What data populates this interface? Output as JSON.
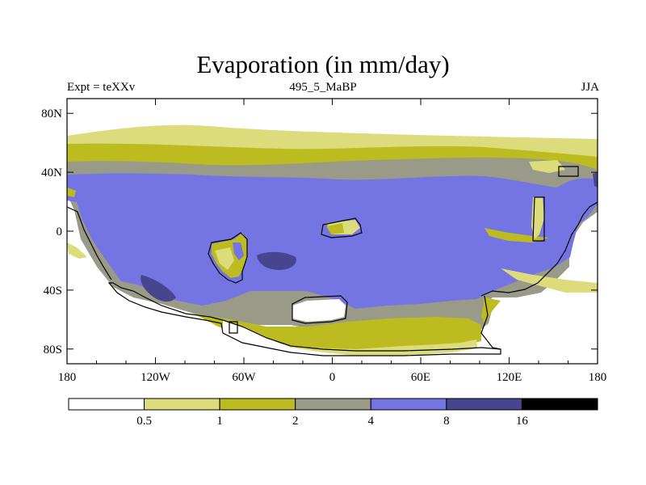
{
  "title": "Evaporation (in mm/day)",
  "left_label": "Expt = teXXv",
  "center_label": "495_5_MaBP",
  "right_label": "JJA",
  "palette": {
    "white": "#ffffff",
    "light": "#dcdc7c",
    "olive": "#bcbc20",
    "gray": "#9a9a88",
    "blue": "#7474e2",
    "navy": "#46468e",
    "black": "#000000"
  },
  "chart_data": {
    "type": "map-contour",
    "title": "Evaporation (in mm/day)",
    "variable": "Evaporation",
    "units": "mm/day",
    "experiment": "teXXv",
    "time_slice": "495_5_MaBP",
    "season": "JJA",
    "lon_range": [
      -180,
      180
    ],
    "lat_range": [
      -90,
      90
    ],
    "x_ticks": [
      "180",
      "120W",
      "60W",
      "0",
      "60E",
      "120E",
      "180"
    ],
    "y_ticks": [
      "80N",
      "40N",
      "0",
      "40S",
      "80S"
    ],
    "colorbar": {
      "levels": [
        "0.5",
        "1",
        "2",
        "4",
        "8",
        "16"
      ],
      "colors": [
        "#ffffff",
        "#dcdc7c",
        "#bcbc20",
        "#9a9a88",
        "#7474e2",
        "#46468e",
        "#000000"
      ]
    }
  }
}
